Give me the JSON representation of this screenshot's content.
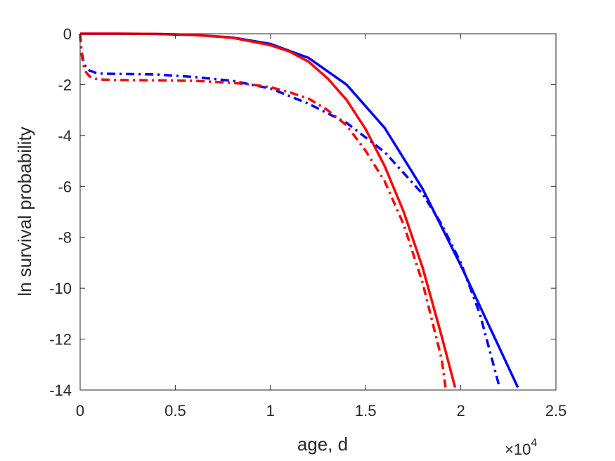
{
  "chart_data": {
    "type": "line",
    "title": "",
    "xlabel": "age, d",
    "ylabel": "ln survival probability",
    "x_exponent_label": "×10",
    "x_exponent_power": "4",
    "xlim": [
      0,
      25000
    ],
    "ylim": [
      -14,
      0
    ],
    "xticks": [
      0,
      5000,
      10000,
      15000,
      20000,
      25000
    ],
    "xtick_labels": [
      "0",
      "0.5",
      "1",
      "1.5",
      "2",
      "2.5"
    ],
    "yticks": [
      0,
      -2,
      -4,
      -6,
      -8,
      -10,
      -12,
      -14
    ],
    "ytick_labels": [
      "0",
      "-2",
      "-4",
      "-6",
      "-8",
      "-10",
      "-12",
      "-14"
    ],
    "grid": false,
    "legend": "none",
    "colors": {
      "red": "#ff0000",
      "blue": "#0000ff",
      "axis": "#262626"
    },
    "series": [
      {
        "color": "#0000ff",
        "style": "solid",
        "x": [
          0,
          2000,
          4000,
          6000,
          8000,
          10000,
          12000,
          14000,
          16000,
          18000,
          20000,
          22000,
          23000
        ],
        "y": [
          0,
          0,
          -0.01,
          -0.05,
          -0.15,
          -0.4,
          -0.95,
          -2.0,
          -3.7,
          -6.1,
          -9.1,
          -12.3,
          -13.9
        ]
      },
      {
        "color": "#ff0000",
        "style": "solid",
        "x": [
          0,
          2000,
          4000,
          6000,
          8000,
          10000,
          11000,
          12000,
          13000,
          14000,
          15000,
          16000,
          17000,
          18000,
          19000,
          19700
        ],
        "y": [
          0,
          0,
          -0.01,
          -0.05,
          -0.16,
          -0.45,
          -0.7,
          -1.1,
          -1.75,
          -2.6,
          -3.75,
          -5.2,
          -7.0,
          -9.2,
          -11.9,
          -13.9
        ]
      },
      {
        "color": "#0000ff",
        "style": "dashdot",
        "x": [
          0,
          50,
          100,
          200,
          300,
          500,
          800,
          1200,
          2000,
          4000,
          6000,
          8000,
          10000,
          12000,
          14000,
          16000,
          18000,
          19000,
          20000,
          21000,
          22000
        ],
        "y": [
          0,
          -0.5,
          -0.8,
          -1.15,
          -1.3,
          -1.45,
          -1.53,
          -1.57,
          -1.58,
          -1.6,
          -1.7,
          -1.85,
          -2.15,
          -2.75,
          -3.5,
          -4.65,
          -6.3,
          -7.5,
          -9.0,
          -11.0,
          -13.8
        ]
      },
      {
        "color": "#ff0000",
        "style": "dashdot",
        "x": [
          0,
          50,
          100,
          200,
          300,
          500,
          800,
          1200,
          2000,
          4000,
          6000,
          8000,
          9000,
          10000,
          11000,
          12000,
          13000,
          14000,
          15000,
          16000,
          17000,
          18000,
          19000,
          19200
        ],
        "y": [
          0,
          -0.55,
          -0.9,
          -1.3,
          -1.5,
          -1.68,
          -1.77,
          -1.8,
          -1.82,
          -1.83,
          -1.85,
          -1.93,
          -2.0,
          -2.1,
          -2.3,
          -2.55,
          -3.0,
          -3.6,
          -4.6,
          -5.8,
          -7.5,
          -9.8,
          -12.8,
          -13.9
        ]
      }
    ]
  }
}
